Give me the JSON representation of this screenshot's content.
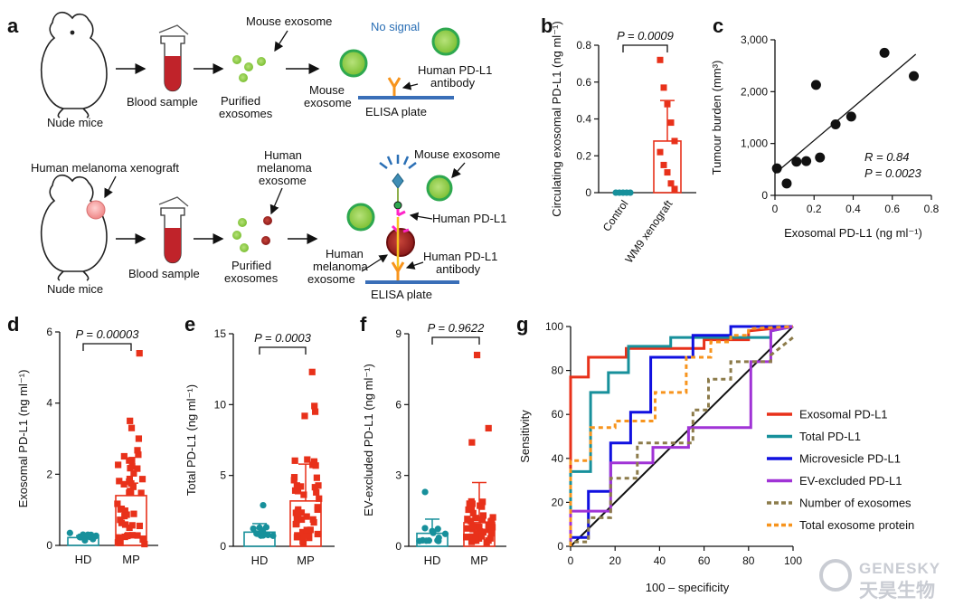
{
  "panels": {
    "a": "a",
    "b": "b",
    "c": "c",
    "d": "d",
    "e": "e",
    "f": "f",
    "g": "g"
  },
  "colors": {
    "red": "#e8311a",
    "teal": "#17909b",
    "green": "#8dc63f",
    "dark_red": "#8b1a1a",
    "blue_text": "#2a6fb5",
    "orange": "#f7941d",
    "olive": "#8c7b4a",
    "purple": "#a033d6",
    "navy": "#1010e0"
  },
  "schematic": {
    "top": {
      "mouse_label": "Nude mice",
      "blood_label": "Blood sample",
      "purified_label_1": "Purified",
      "purified_label_2": "exosomes",
      "mouse_exosome_callout": "Mouse exosome",
      "no_signal": "No signal",
      "mouse_exosome_1": "Mouse",
      "mouse_exosome_2": "exosome",
      "antibody_1": "Human PD-L1",
      "antibody_2": "antibody",
      "elisa": "ELISA plate"
    },
    "bottom": {
      "xenograft_label": "Human melanoma xenograft",
      "mouse_label": "Nude mice",
      "blood_label": "Blood sample",
      "purified_label_1": "Purified",
      "purified_label_2": "exosomes",
      "human_mel_callout_1": "Human",
      "human_mel_callout_2": "melanoma",
      "human_mel_callout_3": "exosome",
      "mouse_exosome_callout": "Mouse exosome",
      "human_pdl1": "Human PD-L1",
      "human_mel_exo_1": "Human",
      "human_mel_exo_2": "melanoma",
      "human_mel_exo_3": "exosome",
      "antibody_1": "Human PD-L1",
      "antibody_2": "antibody",
      "elisa": "ELISA plate"
    }
  },
  "chart_data": [
    {
      "panel": "b",
      "type": "bar",
      "categories": [
        "Control",
        "WM9 xenograft"
      ],
      "values": [
        0.0,
        0.28
      ],
      "errors": [
        0.0,
        0.22
      ],
      "ylabel": "Circulating exosomal PD-L1 (ng ml⁻¹)",
      "ylim": [
        0,
        0.8
      ],
      "yticks": [
        "0",
        "0.2",
        "0.4",
        "0.6",
        "0.8"
      ],
      "p_value": "P = 0.0009",
      "points": [
        [
          0,
          [
            0,
            0,
            0,
            0,
            0,
            0,
            0,
            0,
            0,
            0
          ]
        ],
        [
          1,
          [
            0.72,
            0.57,
            0.48,
            0.38,
            0.28,
            0.22,
            0.15,
            0.11,
            0.05,
            0.02
          ]
        ]
      ]
    },
    {
      "panel": "c",
      "type": "scatter",
      "xlabel": "Exosomal PD-L1 (ng ml⁻¹)",
      "ylabel": "Tumour burden (mm³)",
      "xlim": [
        0,
        0.8
      ],
      "ylim": [
        0,
        3000
      ],
      "xticks": [
        "0",
        "0.2",
        "0.4",
        "0.6",
        "0.8"
      ],
      "yticks": [
        "0",
        "1,000",
        "2,000",
        "3,000"
      ],
      "stats_r": "R = 0.84",
      "stats_p": "P = 0.0023",
      "x": [
        0.01,
        0.06,
        0.11,
        0.16,
        0.21,
        0.23,
        0.31,
        0.39,
        0.56,
        0.71
      ],
      "y": [
        520,
        230,
        650,
        660,
        2130,
        730,
        1370,
        1520,
        2750,
        2300
      ],
      "fit": [
        [
          0,
          420
        ],
        [
          0.72,
          2720
        ]
      ]
    },
    {
      "panel": "d",
      "type": "bar",
      "categories": [
        "HD",
        "MP"
      ],
      "values": [
        0.22,
        1.4
      ],
      "errors": [
        0.05,
        0.35
      ],
      "ylabel": "Exosomal PD-L1 (ng ml⁻¹)",
      "ylim": [
        0,
        6
      ],
      "yticks": [
        "0",
        "2",
        "4",
        "6"
      ],
      "p_value": "P = 0.00003"
    },
    {
      "panel": "e",
      "type": "bar",
      "categories": [
        "HD",
        "MP"
      ],
      "values": [
        1.0,
        3.2
      ],
      "errors": [
        0.6,
        2.6
      ],
      "ylabel": "Total PD-L1 (ng ml⁻¹)",
      "ylim": [
        0,
        15
      ],
      "yticks": [
        "0",
        "5",
        "10",
        "15"
      ],
      "p_value": "P = 0.0003"
    },
    {
      "panel": "f",
      "type": "bar",
      "categories": [
        "HD",
        "MP"
      ],
      "values": [
        0.55,
        1.0
      ],
      "errors": [
        0.6,
        1.7
      ],
      "ylabel": "EV-excluded PD-L1 (ng ml⁻¹)",
      "ylim": [
        0,
        9
      ],
      "yticks": [
        "0",
        "3",
        "6",
        "9"
      ],
      "p_value": "P = 0.9622"
    },
    {
      "panel": "g",
      "type": "line",
      "xlabel": "100 – specificity",
      "ylabel": "Sensitivity",
      "xlim": [
        0,
        100
      ],
      "ylim": [
        0,
        100
      ],
      "xticks": [
        "0",
        "20",
        "40",
        "60",
        "80",
        "100"
      ],
      "yticks": [
        "0",
        "20",
        "40",
        "60",
        "80",
        "100"
      ],
      "legend_position": "center-right",
      "series": [
        {
          "name": "Exosomal PD-L1",
          "color": "#e8311a",
          "dash": "",
          "x": [
            0,
            0,
            8,
            8,
            25,
            25,
            60,
            60,
            80,
            80,
            100
          ],
          "y": [
            0,
            77,
            77,
            86,
            86,
            90,
            90,
            94,
            94,
            98,
            100
          ]
        },
        {
          "name": "Total PD-L1",
          "color": "#17909b",
          "dash": "",
          "x": [
            0,
            0,
            9,
            9,
            17,
            17,
            26,
            26,
            45,
            45,
            90,
            90,
            100
          ],
          "y": [
            0,
            34,
            34,
            70,
            70,
            79,
            79,
            91,
            91,
            95,
            95,
            98,
            100
          ]
        },
        {
          "name": "Microvesicle PD-L1",
          "color": "#1010e0",
          "dash": "",
          "x": [
            0,
            0,
            8,
            8,
            18,
            18,
            27,
            27,
            36,
            36,
            55,
            55,
            72,
            72,
            90,
            90,
            100
          ],
          "y": [
            0,
            4,
            4,
            25,
            25,
            47,
            47,
            61,
            61,
            86,
            86,
            96,
            96,
            100,
            100,
            100,
            100
          ]
        },
        {
          "name": "EV-excluded PD-L1",
          "color": "#a033d6",
          "dash": "",
          "x": [
            0,
            0,
            18,
            18,
            37,
            37,
            53,
            53,
            81,
            81,
            90,
            90,
            100
          ],
          "y": [
            0,
            16,
            16,
            38,
            38,
            45,
            45,
            54,
            54,
            84,
            84,
            98,
            100
          ]
        },
        {
          "name": "Number of exosomes",
          "color": "#8c7b4a",
          "dash": "5,4",
          "x": [
            0,
            0,
            8,
            8,
            18,
            18,
            30,
            30,
            55,
            55,
            62,
            62,
            72,
            72,
            90,
            90,
            100
          ],
          "y": [
            0,
            2,
            2,
            13,
            13,
            31,
            31,
            47,
            47,
            62,
            62,
            76,
            76,
            84,
            84,
            87,
            95
          ]
        },
        {
          "name": "Total exosome protein",
          "color": "#f7941d",
          "dash": "5,4",
          "x": [
            0,
            0,
            9,
            9,
            20,
            20,
            38,
            38,
            52,
            52,
            63,
            63,
            72,
            72,
            80,
            80,
            100
          ],
          "y": [
            0,
            39,
            39,
            54,
            54,
            57,
            57,
            70,
            70,
            86,
            86,
            93,
            93,
            96,
            96,
            99,
            100
          ]
        }
      ]
    }
  ],
  "watermark": {
    "line1": "GENESKY",
    "line2": "天昊生物"
  }
}
